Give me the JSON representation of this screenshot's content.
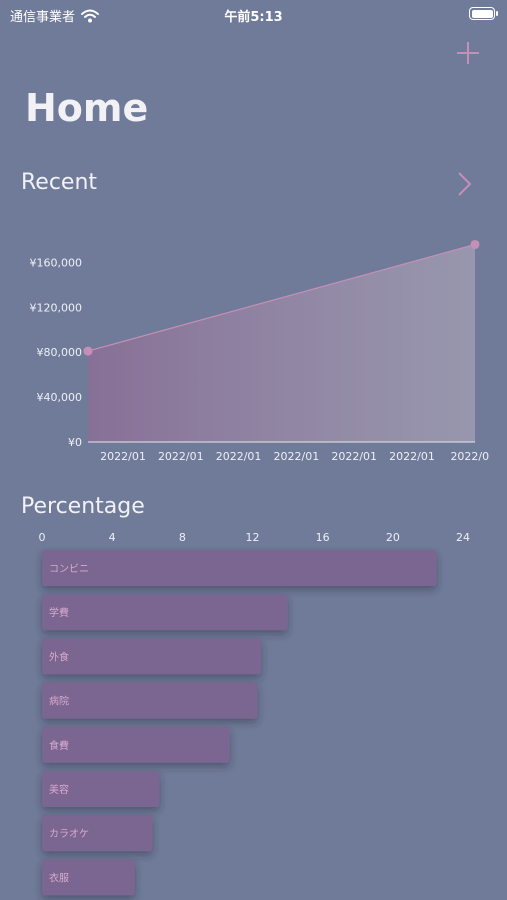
{
  "status_bar": {
    "carrier": "通信事業者",
    "time": "午前5:13"
  },
  "header": {
    "title": "Home",
    "add_icon": "plus-icon"
  },
  "recent": {
    "title": "Recent",
    "nav_icon": "chevron-right-icon"
  },
  "percentage": {
    "title": "Percentage"
  },
  "colors": {
    "background": "#6f7b98",
    "accent": "#c58fb8",
    "bar": "#7a6690",
    "area": "#8e7d9c"
  },
  "chart_data": [
    {
      "type": "area",
      "y_ticks": [
        "¥0",
        "¥40,000",
        "¥80,000",
        "¥120,000",
        "¥160,000"
      ],
      "ylim": [
        0,
        180000
      ],
      "x_ticks": [
        "2022/01",
        "2022/01",
        "2022/01",
        "2022/01",
        "2022/01",
        "2022/01",
        "2022/0"
      ],
      "series": [
        {
          "values": [
            81000,
            176000
          ]
        }
      ]
    },
    {
      "type": "bar",
      "orientation": "horizontal",
      "x_ticks": [
        "0",
        "4",
        "8",
        "12",
        "16",
        "20",
        "24"
      ],
      "xlim": [
        0,
        24
      ],
      "categories": [
        "コンビニ",
        "学費",
        "外食",
        "病院",
        "食費",
        "美容",
        "カラオケ",
        "衣服"
      ],
      "values": [
        22.5,
        14,
        12.5,
        12.3,
        10.7,
        6.7,
        6.3,
        5.3
      ]
    }
  ]
}
